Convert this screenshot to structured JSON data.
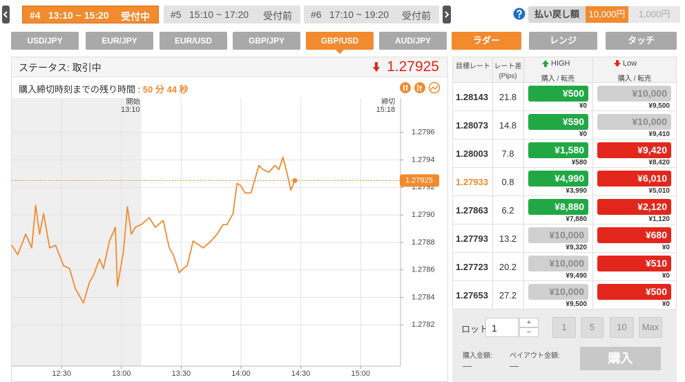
{
  "header": {
    "tabs": [
      {
        "number": "#4",
        "time": "13:10 ~ 15:20",
        "status": "受付中",
        "active": true
      },
      {
        "number": "#5",
        "time": "15:10 ~ 17:20",
        "status": "受付前",
        "active": false
      },
      {
        "number": "#6",
        "time": "17:10 ~ 19:20",
        "status": "受付前",
        "active": false
      }
    ],
    "payout": {
      "label": "払い戻し額",
      "options": [
        "10,000円",
        "1,000円"
      ],
      "selected": 0
    }
  },
  "pairs": {
    "items": [
      "USD/JPY",
      "EUR/JPY",
      "EUR/USD",
      "GBP/JPY",
      "GBP/USD",
      "AUD/JPY"
    ],
    "selected": 4
  },
  "modes": {
    "items": [
      "ラダー",
      "レンジ",
      "タッチ"
    ],
    "selected": 0
  },
  "status": {
    "text": "ステータス: 取引中",
    "remaining_label": "購入締切時刻までの残り時間 :",
    "remaining_value": "50 分 44 秒"
  },
  "chart_data": {
    "type": "line",
    "current_price": 1.27925,
    "x": [
      "12:05",
      "12:08",
      "12:12",
      "12:15",
      "12:17",
      "12:19",
      "12:21",
      "12:24",
      "12:27",
      "12:31",
      "12:34",
      "12:37",
      "12:39",
      "12:41",
      "12:44",
      "12:46",
      "12:49",
      "12:51",
      "12:54",
      "12:57",
      "12:58",
      "13:01",
      "13:03",
      "13:05",
      "13:07",
      "13:10",
      "13:14",
      "13:17",
      "13:21",
      "13:24",
      "13:26",
      "13:29",
      "13:31",
      "13:33",
      "13:36",
      "13:39",
      "13:41",
      "13:45",
      "13:48",
      "13:51",
      "13:53",
      "13:56",
      "13:58",
      "14:00",
      "14:02",
      "14:05",
      "14:07",
      "14:09",
      "14:11",
      "14:14",
      "14:17",
      "14:19",
      "14:21",
      "14:23",
      "14:25",
      "14:27"
    ],
    "series": [
      {
        "color": "#f28a2e",
        "values": [
          1.27878,
          1.27871,
          1.27886,
          1.27876,
          1.27907,
          1.27886,
          1.27901,
          1.27876,
          1.27878,
          1.27863,
          1.27861,
          1.27846,
          1.27841,
          1.27836,
          1.27851,
          1.27856,
          1.27868,
          1.27861,
          1.27881,
          1.27891,
          1.27848,
          1.27873,
          1.27906,
          1.27886,
          1.27891,
          1.27893,
          1.27898,
          1.27891,
          1.27896,
          1.27876,
          1.27871,
          1.27858,
          1.27861,
          1.27863,
          1.27881,
          1.27878,
          1.27876,
          1.27881,
          1.27886,
          1.27893,
          1.27893,
          1.27901,
          1.27923,
          1.27921,
          1.27916,
          1.27916,
          1.27926,
          1.27936,
          1.27933,
          1.27931,
          1.27936,
          1.27933,
          1.27942,
          1.27931,
          1.27918,
          1.27925
        ]
      }
    ],
    "xlim": [
      "12:05",
      "15:20"
    ],
    "xticks": [
      "12:30",
      "13:00",
      "13:30",
      "14:00",
      "14:30",
      "15:00"
    ],
    "ylim": [
      1.2779,
      1.27985
    ],
    "yticks": [
      1.2782,
      1.2784,
      1.2786,
      1.2788,
      {
        "value": 1.279,
        "label": "1.2790"
      },
      1.2792,
      1.2794,
      1.2796
    ],
    "grid": true,
    "markers": [
      {
        "label": "開始",
        "time": "13:10"
      },
      {
        "label": "締切",
        "time": "15:18"
      }
    ]
  },
  "ladder": {
    "headers": {
      "rate": "目標レート",
      "diff": "レート差",
      "diff_unit": "(Pips)",
      "high": "HIGH",
      "low": "Low",
      "high_sub": "購入 / 転売",
      "low_sub": "購入 / 転売"
    },
    "rows": [
      {
        "rate": "1.28143",
        "diff": "21.8",
        "current": false,
        "high": {
          "price": "¥500",
          "resale": "¥0",
          "on": true
        },
        "low": {
          "price": "¥10,000",
          "resale": "¥9,500",
          "on": false
        }
      },
      {
        "rate": "1.28073",
        "diff": "14.8",
        "current": false,
        "high": {
          "price": "¥590",
          "resale": "¥0",
          "on": true
        },
        "low": {
          "price": "¥10,000",
          "resale": "¥9,410",
          "on": false
        }
      },
      {
        "rate": "1.28003",
        "diff": "7.8",
        "current": false,
        "high": {
          "price": "¥1,580",
          "resale": "¥580",
          "on": true
        },
        "low": {
          "price": "¥9,420",
          "resale": "¥8,420",
          "on": true
        }
      },
      {
        "rate": "1.27933",
        "diff": "0.8",
        "current": true,
        "high": {
          "price": "¥4,990",
          "resale": "¥3,990",
          "on": true
        },
        "low": {
          "price": "¥6,010",
          "resale": "¥5,010",
          "on": true
        }
      },
      {
        "rate": "1.27863",
        "diff": "6.2",
        "current": false,
        "high": {
          "price": "¥8,880",
          "resale": "¥7,880",
          "on": true
        },
        "low": {
          "price": "¥2,120",
          "resale": "¥1,120",
          "on": true
        }
      },
      {
        "rate": "1.27793",
        "diff": "13.2",
        "current": false,
        "high": {
          "price": "¥10,000",
          "resale": "¥9,320",
          "on": false
        },
        "low": {
          "price": "¥680",
          "resale": "¥0",
          "on": true
        }
      },
      {
        "rate": "1.27723",
        "diff": "20.2",
        "current": false,
        "high": {
          "price": "¥10,000",
          "resale": "¥9,490",
          "on": false
        },
        "low": {
          "price": "¥510",
          "resale": "¥0",
          "on": true
        }
      },
      {
        "rate": "1.27653",
        "diff": "27.2",
        "current": false,
        "high": {
          "price": "¥10,000",
          "resale": "¥9,500",
          "on": false
        },
        "low": {
          "price": "¥500",
          "resale": "¥0",
          "on": true
        }
      }
    ]
  },
  "order": {
    "lot_label": "ロット",
    "lot": "1",
    "plus": "+",
    "minus": "−",
    "lot_buttons": [
      "1",
      "5",
      "10",
      "Max"
    ],
    "amount_label": "購入金額:",
    "amount": "—",
    "payout_label": "ペイアウト金額:",
    "payout": "—",
    "buy": "購入"
  }
}
